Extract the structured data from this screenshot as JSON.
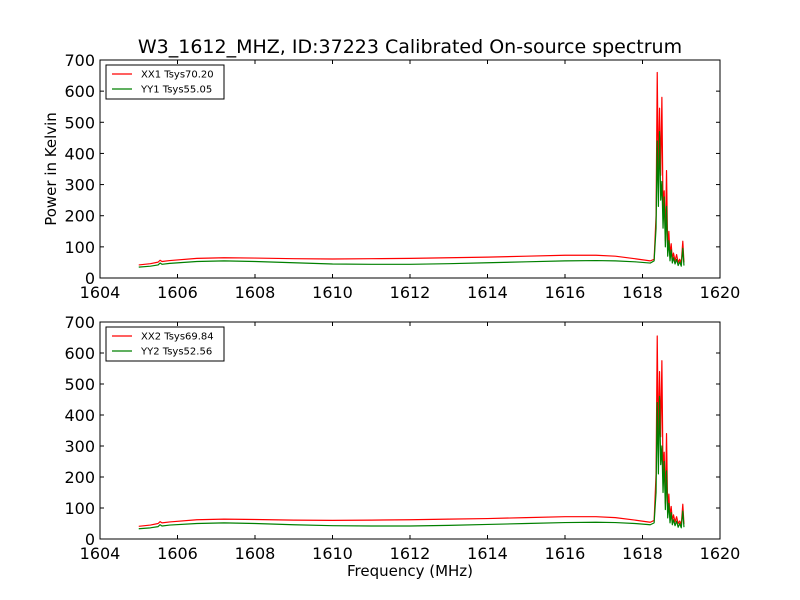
{
  "chart_data": [
    {
      "type": "line",
      "title": "W3_1612_MHZ, ID:37223 Calibrated On-source spectrum",
      "xlabel": "",
      "ylabel": "Power in Kelvin",
      "xlim": [
        1604,
        1620
      ],
      "ylim": [
        0,
        700
      ],
      "xticks": [
        1604,
        1606,
        1608,
        1610,
        1612,
        1614,
        1616,
        1618,
        1620
      ],
      "yticks": [
        0,
        100,
        200,
        300,
        400,
        500,
        600,
        700
      ],
      "grid": false,
      "legend_position": "top-left",
      "series": [
        {
          "name": "XX1 Tsys70.20",
          "color": "#ff0000",
          "points": [
            [
              1605.0,
              42
            ],
            [
              1605.3,
              46
            ],
            [
              1605.5,
              51
            ],
            [
              1605.55,
              57
            ],
            [
              1605.6,
              53
            ],
            [
              1605.8,
              56
            ],
            [
              1606.5,
              63
            ],
            [
              1607.2,
              65
            ],
            [
              1608.0,
              64
            ],
            [
              1609.0,
              62
            ],
            [
              1610.0,
              61
            ],
            [
              1611.0,
              62
            ],
            [
              1612.0,
              63
            ],
            [
              1613.0,
              65
            ],
            [
              1614.0,
              67
            ],
            [
              1615.0,
              70
            ],
            [
              1616.0,
              73
            ],
            [
              1616.8,
              73
            ],
            [
              1617.3,
              70
            ],
            [
              1617.8,
              62
            ],
            [
              1618.2,
              55
            ],
            [
              1618.3,
              60
            ],
            [
              1618.35,
              200
            ],
            [
              1618.38,
              660
            ],
            [
              1618.41,
              320
            ],
            [
              1618.44,
              545
            ],
            [
              1618.47,
              330
            ],
            [
              1618.5,
              580
            ],
            [
              1618.53,
              220
            ],
            [
              1618.56,
              280
            ],
            [
              1618.59,
              120
            ],
            [
              1618.62,
              345
            ],
            [
              1618.65,
              90
            ],
            [
              1618.68,
              150
            ],
            [
              1618.71,
              70
            ],
            [
              1618.74,
              110
            ],
            [
              1618.77,
              60
            ],
            [
              1618.8,
              80
            ],
            [
              1618.84,
              55
            ],
            [
              1618.88,
              75
            ],
            [
              1618.92,
              50
            ],
            [
              1618.96,
              60
            ],
            [
              1619.0,
              48
            ],
            [
              1619.04,
              118
            ],
            [
              1619.07,
              50
            ]
          ]
        },
        {
          "name": "YY1 Tsys55.05",
          "color": "#008000",
          "points": [
            [
              1605.0,
              35
            ],
            [
              1605.3,
              38
            ],
            [
              1605.5,
              42
            ],
            [
              1605.55,
              48
            ],
            [
              1605.6,
              44
            ],
            [
              1605.8,
              47
            ],
            [
              1606.5,
              53
            ],
            [
              1607.2,
              55
            ],
            [
              1608.0,
              53
            ],
            [
              1609.0,
              49
            ],
            [
              1610.0,
              45
            ],
            [
              1611.0,
              44
            ],
            [
              1612.0,
              44
            ],
            [
              1613.0,
              46
            ],
            [
              1614.0,
              49
            ],
            [
              1615.0,
              52
            ],
            [
              1616.0,
              55
            ],
            [
              1616.8,
              56
            ],
            [
              1617.3,
              55
            ],
            [
              1617.8,
              52
            ],
            [
              1618.2,
              48
            ],
            [
              1618.3,
              55
            ],
            [
              1618.35,
              160
            ],
            [
              1618.38,
              440
            ],
            [
              1618.41,
              230
            ],
            [
              1618.44,
              470
            ],
            [
              1618.47,
              250
            ],
            [
              1618.5,
              310
            ],
            [
              1618.53,
              160
            ],
            [
              1618.56,
              260
            ],
            [
              1618.59,
              100
            ],
            [
              1618.62,
              230
            ],
            [
              1618.65,
              70
            ],
            [
              1618.68,
              120
            ],
            [
              1618.71,
              55
            ],
            [
              1618.74,
              90
            ],
            [
              1618.77,
              48
            ],
            [
              1618.8,
              65
            ],
            [
              1618.84,
              45
            ],
            [
              1618.88,
              60
            ],
            [
              1618.92,
              40
            ],
            [
              1618.96,
              52
            ],
            [
              1619.0,
              38
            ],
            [
              1619.04,
              95
            ],
            [
              1619.07,
              40
            ]
          ]
        }
      ]
    },
    {
      "type": "line",
      "title": "",
      "xlabel": "Frequency (MHz)",
      "ylabel": "",
      "xlim": [
        1604,
        1620
      ],
      "ylim": [
        0,
        700
      ],
      "xticks": [
        1604,
        1606,
        1608,
        1610,
        1612,
        1614,
        1616,
        1618,
        1620
      ],
      "yticks": [
        0,
        100,
        200,
        300,
        400,
        500,
        600,
        700
      ],
      "grid": false,
      "legend_position": "top-left",
      "series": [
        {
          "name": "XX2 Tsys69.84",
          "color": "#ff0000",
          "points": [
            [
              1605.0,
              41
            ],
            [
              1605.3,
              45
            ],
            [
              1605.5,
              50
            ],
            [
              1605.55,
              56
            ],
            [
              1605.6,
              52
            ],
            [
              1605.8,
              55
            ],
            [
              1606.5,
              62
            ],
            [
              1607.2,
              64
            ],
            [
              1608.0,
              63
            ],
            [
              1609.0,
              61
            ],
            [
              1610.0,
              60
            ],
            [
              1611.0,
              61
            ],
            [
              1612.0,
              62
            ],
            [
              1613.0,
              64
            ],
            [
              1614.0,
              66
            ],
            [
              1615.0,
              69
            ],
            [
              1616.0,
              72
            ],
            [
              1616.8,
              72
            ],
            [
              1617.3,
              69
            ],
            [
              1617.8,
              61
            ],
            [
              1618.2,
              54
            ],
            [
              1618.3,
              60
            ],
            [
              1618.35,
              210
            ],
            [
              1618.38,
              655
            ],
            [
              1618.41,
              300
            ],
            [
              1618.44,
              540
            ],
            [
              1618.47,
              330
            ],
            [
              1618.5,
              575
            ],
            [
              1618.53,
              210
            ],
            [
              1618.56,
              280
            ],
            [
              1618.59,
              115
            ],
            [
              1618.62,
              340
            ],
            [
              1618.65,
              90
            ],
            [
              1618.68,
              145
            ],
            [
              1618.71,
              70
            ],
            [
              1618.74,
              105
            ],
            [
              1618.77,
              58
            ],
            [
              1618.8,
              78
            ],
            [
              1618.84,
              55
            ],
            [
              1618.88,
              72
            ],
            [
              1618.92,
              50
            ],
            [
              1618.96,
              58
            ],
            [
              1619.0,
              46
            ],
            [
              1619.04,
              112
            ],
            [
              1619.07,
              48
            ]
          ]
        },
        {
          "name": "YY2 Tsys52.56",
          "color": "#008000",
          "points": [
            [
              1605.0,
              33
            ],
            [
              1605.3,
              36
            ],
            [
              1605.5,
              40
            ],
            [
              1605.55,
              46
            ],
            [
              1605.6,
              42
            ],
            [
              1605.8,
              45
            ],
            [
              1606.5,
              50
            ],
            [
              1607.2,
              52
            ],
            [
              1608.0,
              50
            ],
            [
              1609.0,
              46
            ],
            [
              1610.0,
              43
            ],
            [
              1611.0,
              42
            ],
            [
              1612.0,
              42
            ],
            [
              1613.0,
              44
            ],
            [
              1614.0,
              47
            ],
            [
              1615.0,
              50
            ],
            [
              1616.0,
              53
            ],
            [
              1616.8,
              54
            ],
            [
              1617.3,
              53
            ],
            [
              1617.8,
              50
            ],
            [
              1618.2,
              46
            ],
            [
              1618.3,
              52
            ],
            [
              1618.35,
              150
            ],
            [
              1618.38,
              440
            ],
            [
              1618.41,
              210
            ],
            [
              1618.44,
              460
            ],
            [
              1618.47,
              240
            ],
            [
              1618.5,
              300
            ],
            [
              1618.53,
              150
            ],
            [
              1618.56,
              250
            ],
            [
              1618.59,
              95
            ],
            [
              1618.62,
              220
            ],
            [
              1618.65,
              68
            ],
            [
              1618.68,
              115
            ],
            [
              1618.71,
              52
            ],
            [
              1618.74,
              85
            ],
            [
              1618.77,
              46
            ],
            [
              1618.8,
              62
            ],
            [
              1618.84,
              43
            ],
            [
              1618.88,
              58
            ],
            [
              1618.92,
              38
            ],
            [
              1618.96,
              50
            ],
            [
              1619.0,
              36
            ],
            [
              1619.04,
              90
            ],
            [
              1619.07,
              38
            ]
          ]
        }
      ]
    }
  ]
}
